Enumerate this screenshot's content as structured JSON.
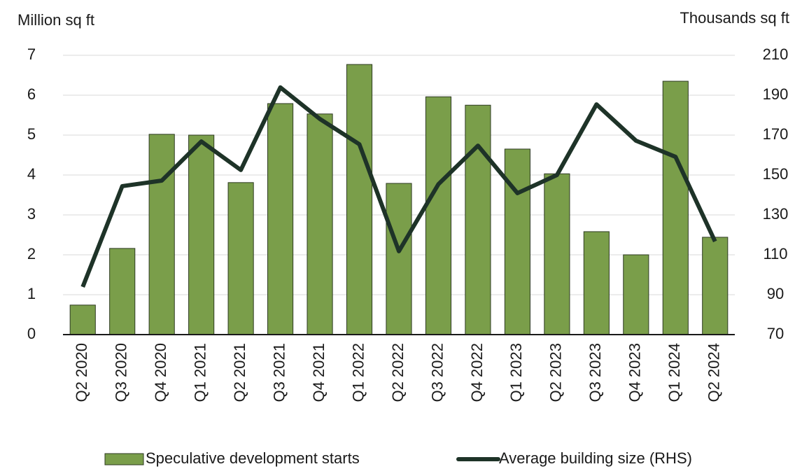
{
  "chart_data": {
    "type": "bar",
    "y_label": "Million sq ft",
    "y2_label": "Thousands sq ft",
    "categories": [
      "Q2 2020",
      "Q3 2020",
      "Q4 2020",
      "Q1 2021",
      "Q2 2021",
      "Q3 2021",
      "Q4 2021",
      "Q1 2022",
      "Q2 2022",
      "Q3 2022",
      "Q4 2022",
      "Q1 2023",
      "Q2 2023",
      "Q3 2023",
      "Q4 2023",
      "Q1 2024",
      "Q2 2024"
    ],
    "series": [
      {
        "name": "Speculative development starts",
        "type": "bar",
        "color": "#7a9e4a",
        "values": [
          0.74,
          2.16,
          5.02,
          5.0,
          3.81,
          5.79,
          5.53,
          6.77,
          3.79,
          5.96,
          5.75,
          4.65,
          4.03,
          2.58,
          2.0,
          6.35,
          2.44
        ]
      },
      {
        "name": "Average building size (RHS)",
        "type": "line",
        "axis": "y2",
        "color": "#1e3328",
        "values": [
          93.9,
          144.4,
          147.2,
          166.8,
          152.5,
          193.9,
          178.1,
          165.4,
          111.8,
          145.4,
          164.7,
          140.9,
          150,
          185.4,
          167.2,
          159.1,
          116.7
        ]
      }
    ],
    "ylim": [
      0,
      7
    ],
    "yticks": [
      0,
      1,
      2,
      3,
      4,
      5,
      6,
      7
    ],
    "y2lim": [
      70,
      210
    ],
    "y2ticks": [
      70,
      90,
      110,
      130,
      150,
      170,
      190,
      210
    ],
    "grid": true
  }
}
